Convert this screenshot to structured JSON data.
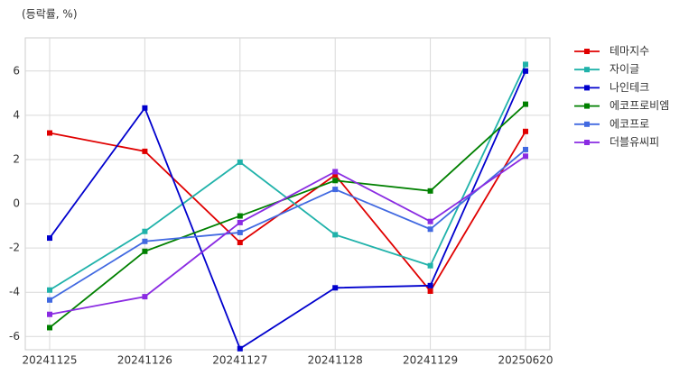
{
  "chart_data": {
    "type": "line",
    "title": "(등락률, %)",
    "categories": [
      "20241125",
      "20241126",
      "20241127",
      "20241128",
      "20241129",
      "20250620"
    ],
    "series": [
      {
        "name": "테마지수",
        "color": "#e00000",
        "values": [
          3.2,
          2.37,
          -1.75,
          1.3,
          -3.95,
          3.27
        ]
      },
      {
        "name": "자이글",
        "color": "#20b2aa",
        "values": [
          -3.9,
          -1.25,
          1.88,
          -1.4,
          -2.8,
          6.3
        ]
      },
      {
        "name": "나인테크",
        "color": "#0000cd",
        "values": [
          -1.55,
          4.33,
          -6.55,
          -3.8,
          -3.7,
          6.0
        ]
      },
      {
        "name": "에코프로비엠",
        "color": "#008000",
        "values": [
          -5.6,
          -2.15,
          -0.55,
          1.05,
          0.58,
          4.5
        ]
      },
      {
        "name": "에코프로",
        "color": "#4169e1",
        "values": [
          -4.35,
          -1.7,
          -1.3,
          0.65,
          -1.15,
          2.45
        ]
      },
      {
        "name": "더블유씨피",
        "color": "#8a2be2",
        "values": [
          -5.0,
          -4.2,
          -0.85,
          1.45,
          -0.8,
          2.15
        ]
      }
    ],
    "ylim": [
      -6.6,
      7.5
    ],
    "yticks": [
      -6,
      -4,
      -2,
      0,
      2,
      4,
      6
    ],
    "grid": true,
    "legend": "outside-right"
  }
}
